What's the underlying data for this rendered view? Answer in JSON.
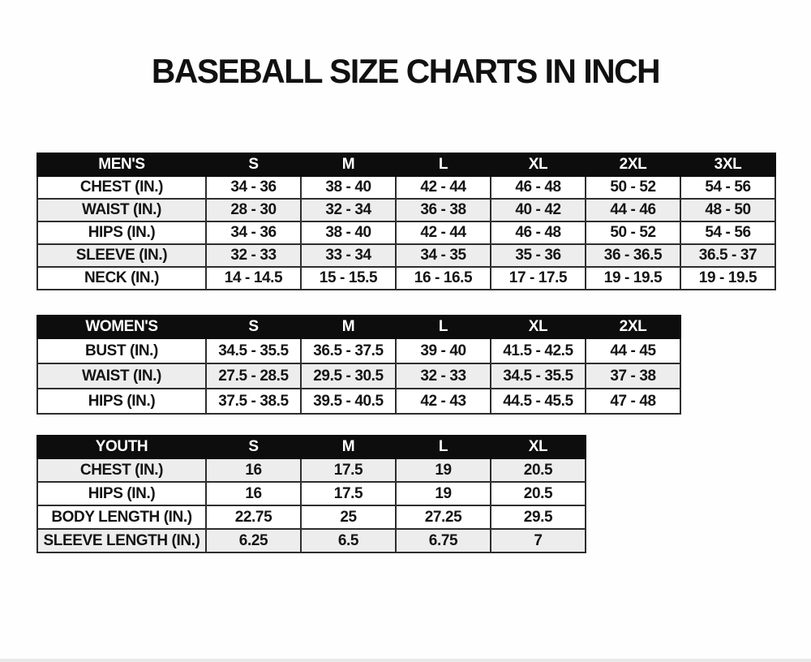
{
  "page_title": "BASEBALL SIZE CHARTS IN INCH",
  "colors": {
    "header_bg": "#0d0d0d",
    "header_text": "#ffffff",
    "row_shaded": "#ededed",
    "row_plain": "#ffffff",
    "border": "#2e2e2e",
    "text": "#141414"
  },
  "tables": [
    {
      "name": "mens-size-chart",
      "columns": [
        "MEN'S",
        "S",
        "M",
        "L",
        "XL",
        "2XL",
        "3XL"
      ],
      "rows": [
        {
          "label": "CHEST (IN.)",
          "shaded": false,
          "values": [
            "34 - 36",
            "38 - 40",
            "42 - 44",
            "46 - 48",
            "50 - 52",
            "54 - 56"
          ]
        },
        {
          "label": "WAIST (IN.)",
          "shaded": true,
          "values": [
            "28 - 30",
            "32 - 34",
            "36 - 38",
            "40 - 42",
            "44 - 46",
            "48 - 50"
          ]
        },
        {
          "label": "HIPS (IN.)",
          "shaded": false,
          "values": [
            "34 - 36",
            "38 - 40",
            "42 - 44",
            "46 - 48",
            "50 - 52",
            "54 - 56"
          ]
        },
        {
          "label": "SLEEVE (IN.)",
          "shaded": true,
          "values": [
            "32 - 33",
            "33 - 34",
            "34 - 35",
            "35 - 36",
            "36 - 36.5",
            "36.5 - 37"
          ]
        },
        {
          "label": "NECK (IN.)",
          "shaded": false,
          "values": [
            "14 - 14.5",
            "15 - 15.5",
            "16 - 16.5",
            "17 - 17.5",
            "19 - 19.5",
            "19 - 19.5"
          ]
        }
      ]
    },
    {
      "name": "womens-size-chart",
      "columns": [
        "WOMEN'S",
        "S",
        "M",
        "L",
        "XL",
        "2XL"
      ],
      "rows": [
        {
          "label": "BUST (IN.)",
          "shaded": false,
          "values": [
            "34.5 - 35.5",
            "36.5 - 37.5",
            "39 - 40",
            "41.5 - 42.5",
            "44 - 45"
          ]
        },
        {
          "label": "WAIST (IN.)",
          "shaded": true,
          "values": [
            "27.5 - 28.5",
            "29.5 - 30.5",
            "32 - 33",
            "34.5 - 35.5",
            "37 - 38"
          ]
        },
        {
          "label": "HIPS (IN.)",
          "shaded": false,
          "values": [
            "37.5 - 38.5",
            "39.5 - 40.5",
            "42 - 43",
            "44.5 - 45.5",
            "47 - 48"
          ]
        }
      ]
    },
    {
      "name": "youth-size-chart",
      "columns": [
        "YOUTH",
        "S",
        "M",
        "L",
        "XL"
      ],
      "rows": [
        {
          "label": "CHEST (IN.)",
          "shaded": true,
          "values": [
            "16",
            "17.5",
            "19",
            "20.5"
          ]
        },
        {
          "label": "HIPS (IN.)",
          "shaded": false,
          "values": [
            "16",
            "17.5",
            "19",
            "20.5"
          ]
        },
        {
          "label": "BODY LENGTH (IN.)",
          "shaded": false,
          "values": [
            "22.75",
            "25",
            "27.25",
            "29.5"
          ]
        },
        {
          "label": "SLEEVE LENGTH (IN.)",
          "shaded": true,
          "values": [
            "6.25",
            "6.5",
            "6.75",
            "7"
          ]
        }
      ]
    }
  ],
  "layout": {
    "label_col_width": 208,
    "value_col_width": 117
  }
}
